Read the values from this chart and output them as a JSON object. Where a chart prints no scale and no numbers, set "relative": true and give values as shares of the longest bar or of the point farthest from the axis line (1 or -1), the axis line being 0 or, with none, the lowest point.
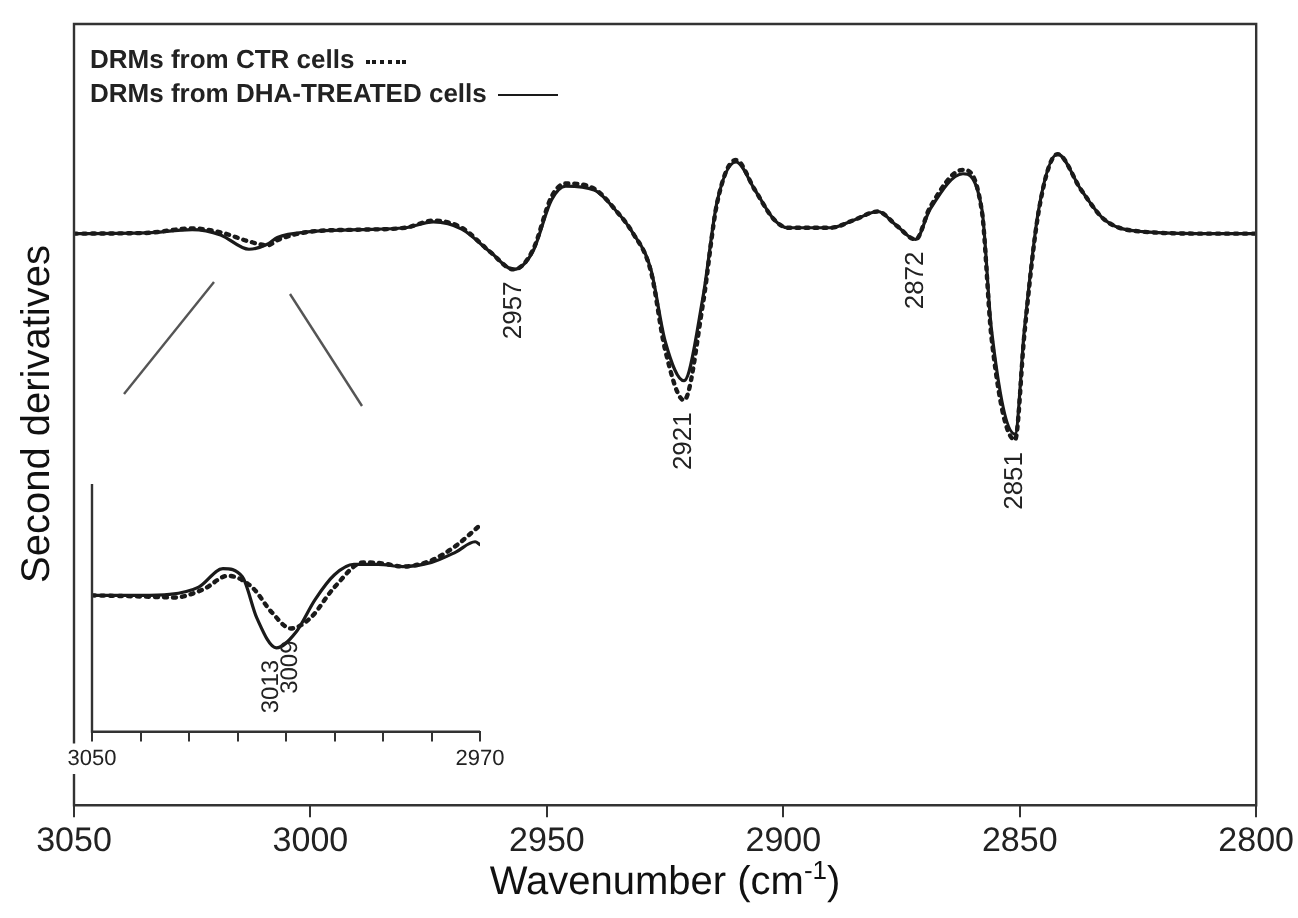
{
  "chart_data": [
    {
      "type": "line",
      "xlabel": "Wavenumber (cm$^{-1}$)",
      "ylabel": "Second derivatives",
      "relative": true,
      "legend": "top left",
      "xlim": [
        3050,
        2800
      ],
      "xticks": [
        3050,
        3000,
        2950,
        2900,
        2850,
        2800
      ],
      "x": [
        3050,
        3035,
        3025,
        3019,
        3013,
        3009,
        3007,
        3000,
        2990,
        2980,
        2974,
        2968,
        2962,
        2957,
        2953,
        2949,
        2946,
        2940,
        2935,
        2932,
        2928,
        2925,
        2921,
        2917,
        2914,
        2910,
        2906,
        2902,
        2899,
        2890,
        2885,
        2880,
        2876,
        2872,
        2869,
        2862,
        2858,
        2856,
        2851,
        2849,
        2846,
        2842,
        2837,
        2832,
        2824,
        2810,
        2800
      ],
      "series": [
        {
          "name": "DRMs from CTR cells",
          "color": "#1a1a1a",
          "line_style": "dotted",
          "values": [
            0.878,
            0.879,
            0.886,
            0.88,
            0.866,
            0.86,
            0.868,
            0.881,
            0.884,
            0.887,
            0.898,
            0.887,
            0.85,
            0.823,
            0.852,
            0.935,
            0.955,
            0.947,
            0.91,
            0.881,
            0.82,
            0.7,
            0.622,
            0.77,
            0.925,
            0.991,
            0.945,
            0.9,
            0.887,
            0.887,
            0.899,
            0.912,
            0.89,
            0.869,
            0.918,
            0.976,
            0.912,
            0.72,
            0.561,
            0.725,
            0.912,
            1.0,
            0.945,
            0.899,
            0.881,
            0.878,
            0.878
          ]
        },
        {
          "name": "DRMs from DHA-TREATED cells",
          "color": "#1a1a1a",
          "line_style": "solid",
          "values": [
            0.878,
            0.879,
            0.884,
            0.876,
            0.854,
            0.862,
            0.872,
            0.881,
            0.884,
            0.887,
            0.896,
            0.885,
            0.85,
            0.823,
            0.85,
            0.93,
            0.951,
            0.945,
            0.91,
            0.881,
            0.823,
            0.713,
            0.652,
            0.78,
            0.927,
            0.988,
            0.945,
            0.9,
            0.887,
            0.887,
            0.899,
            0.912,
            0.89,
            0.869,
            0.915,
            0.97,
            0.915,
            0.732,
            0.57,
            0.732,
            0.915,
            1.0,
            0.945,
            0.899,
            0.881,
            0.878,
            0.878
          ]
        }
      ],
      "annotations": [
        {
          "text": "2957",
          "x": 2957,
          "y": 0.823
        },
        {
          "text": "2921",
          "x": 2921,
          "y": 0.622
        },
        {
          "text": "2872",
          "x": 2872,
          "y": 0.869
        },
        {
          "text": "2851",
          "x": 2851,
          "y": 0.561
        }
      ]
    },
    {
      "type": "line",
      "relative": true,
      "tick_labels": "x",
      "xlim": [
        3050,
        2970
      ],
      "xticks": [
        3050,
        {
          "value": 3040,
          "label": null
        },
        {
          "value": 3030,
          "label": null
        },
        {
          "value": 3020,
          "label": null
        },
        {
          "value": 3010,
          "label": null
        },
        {
          "value": 3000,
          "label": null
        },
        {
          "value": 2990,
          "label": null
        },
        {
          "value": 2980,
          "label": null
        },
        2970
      ],
      "series": [
        {
          "color": "#1a1a1a",
          "line_style": "dotted",
          "x": [
            3050,
            3040,
            3033,
            3027,
            3022,
            3017,
            3013,
            3009,
            3005,
            3000,
            2994,
            2990,
            2986,
            2980,
            2975,
            2970
          ],
          "values": [
            0.66,
            0.655,
            0.65,
            0.69,
            0.755,
            0.7,
            0.58,
            0.5,
            0.55,
            0.7,
            0.82,
            0.815,
            0.8,
            0.83,
            0.9,
            1.0
          ]
        },
        {
          "color": "#1a1a1a",
          "line_style": "solid",
          "x": [
            3050,
            3040,
            3034,
            3028,
            3023,
            3019,
            3016,
            3012,
            3008,
            3004,
            3000,
            2996,
            2991,
            2986,
            2980,
            2975,
            2971,
            2970
          ],
          "values": [
            0.66,
            0.66,
            0.665,
            0.7,
            0.79,
            0.75,
            0.55,
            0.406,
            0.48,
            0.64,
            0.76,
            0.81,
            0.81,
            0.8,
            0.82,
            0.87,
            0.92,
            0.906
          ]
        }
      ],
      "annotations": [
        {
          "text": "3013",
          "x": 3013,
          "y": 0.406
        },
        {
          "text": "3009",
          "x": 3009,
          "y": 0.5
        }
      ]
    }
  ]
}
